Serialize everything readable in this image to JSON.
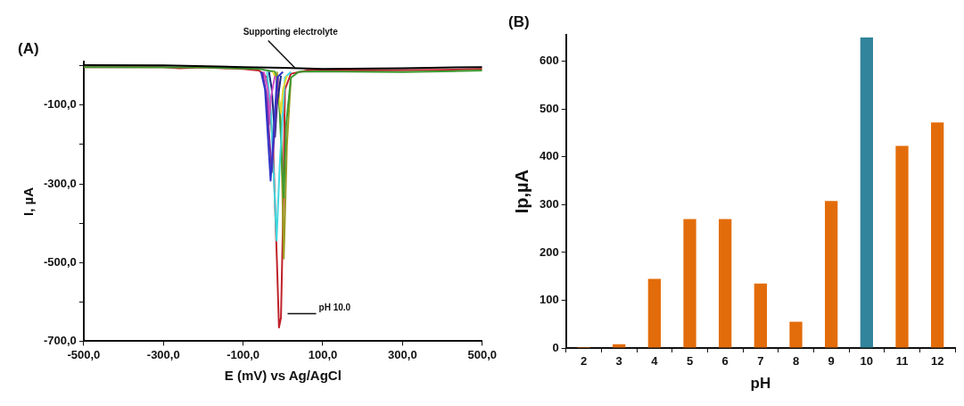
{
  "chart_data": [
    {
      "type": "line",
      "title": "(A)",
      "xlabel": "E (mV) vs Ag/AgCl",
      "ylabel": "I, µA",
      "xlim": [
        -500,
        500
      ],
      "xticks": [
        {
          "value": -500,
          "label": "-500,0"
        },
        {
          "value": -300,
          "label": "-300,0"
        },
        {
          "value": -100,
          "label": "-100,0"
        },
        {
          "value": 100,
          "label": "100,0"
        },
        {
          "value": 300,
          "label": "300,0"
        },
        {
          "value": 500,
          "label": "500,0"
        }
      ],
      "ylim": [
        -700,
        10
      ],
      "yticks": [
        {
          "value": -700,
          "label": "-700,0"
        },
        {
          "value": -600,
          "label": null
        },
        {
          "value": -500,
          "label": "-500,0"
        },
        {
          "value": -400,
          "label": null
        },
        {
          "value": -300,
          "label": "-300,0"
        },
        {
          "value": -200,
          "label": null
        },
        {
          "value": -100,
          "label": "-100,0"
        },
        {
          "value": 0,
          "label": null
        }
      ],
      "marker": "none",
      "legend": false,
      "annotations": [
        {
          "text": "Supporting electrolyte",
          "x": 30,
          "y": -5
        },
        {
          "text": "pH 10.0",
          "x": 5,
          "y": -630
        }
      ],
      "series": [
        {
          "color": "#000000",
          "x": [
            -500,
            -300,
            -100,
            0,
            100,
            300,
            500
          ],
          "values": [
            2,
            1,
            -3,
            -5,
            -8,
            -6,
            -3
          ]
        },
        {
          "color": "#2f35c8",
          "x": [
            -55,
            -45,
            -31,
            -25,
            -15,
            0
          ],
          "values": [
            -15,
            -60,
            -292,
            -200,
            -30,
            -15
          ]
        },
        {
          "color": "#7a2ca0",
          "x": [
            -52,
            -42,
            -28,
            -22,
            -12
          ],
          "values": [
            -15,
            -70,
            -270,
            -180,
            -30
          ]
        },
        {
          "color": "#d050c8",
          "x": [
            -48,
            -38,
            -35,
            -30,
            -20
          ],
          "values": [
            -15,
            -60,
            -150,
            -80,
            -25
          ]
        },
        {
          "color": "#1a2a80",
          "x": [
            -35,
            -28,
            -20,
            -15,
            -5
          ],
          "values": [
            -15,
            -60,
            -180,
            -100,
            -25
          ]
        },
        {
          "color": "#e6d830",
          "x": [
            -25,
            -15,
            -5,
            0,
            10
          ],
          "values": [
            -15,
            -40,
            -120,
            -60,
            -25
          ]
        },
        {
          "color": "#40d8e0",
          "x": [
            -40,
            -30,
            -16,
            -8,
            5,
            20
          ],
          "values": [
            -15,
            -120,
            -444,
            -250,
            -30,
            -15
          ]
        },
        {
          "color": "#3c9a30",
          "x": [
            -500,
            -200,
            -60,
            -20,
            -10,
            2,
            8,
            20,
            40,
            80,
            300,
            500
          ],
          "values": [
            -3,
            -4,
            -8,
            -15,
            -80,
            -335,
            -150,
            -30,
            -15,
            -14,
            -16,
            -12
          ]
        },
        {
          "color": "#9a9a20",
          "x": [
            -15,
            -5,
            2,
            10,
            20
          ],
          "values": [
            -15,
            -150,
            -490,
            -200,
            -30
          ]
        },
        {
          "color": "#c0202a",
          "x": [
            -500,
            -300,
            -260,
            -200,
            -100,
            -60,
            -40,
            -25,
            -15,
            -10,
            -5,
            0,
            5,
            20,
            60,
            200,
            400,
            500
          ],
          "values": [
            -3,
            -3,
            -6,
            -4,
            -8,
            -12,
            -30,
            -200,
            -500,
            -665,
            -640,
            -400,
            -60,
            -20,
            -12,
            -12,
            -10,
            -8
          ]
        }
      ]
    },
    {
      "type": "bar",
      "title": "(B)",
      "xlabel": "pH",
      "ylabel": "Ip,µA",
      "categories": [
        "2",
        "3",
        "4",
        "5",
        "6",
        "7",
        "8",
        "9",
        "10",
        "11",
        "12"
      ],
      "values": [
        2,
        8,
        145,
        270,
        270,
        135,
        55,
        308,
        650,
        423,
        472
      ],
      "colors": [
        "#e36c0a",
        "#e36c0a",
        "#e36c0a",
        "#e36c0a",
        "#e36c0a",
        "#e36c0a",
        "#e36c0a",
        "#e36c0a",
        "#31849b",
        "#e36c0a",
        "#e36c0a"
      ],
      "ylim": [
        0,
        655
      ],
      "yticks": [
        0,
        100,
        200,
        300,
        400,
        500,
        600
      ],
      "legend": false
    }
  ]
}
